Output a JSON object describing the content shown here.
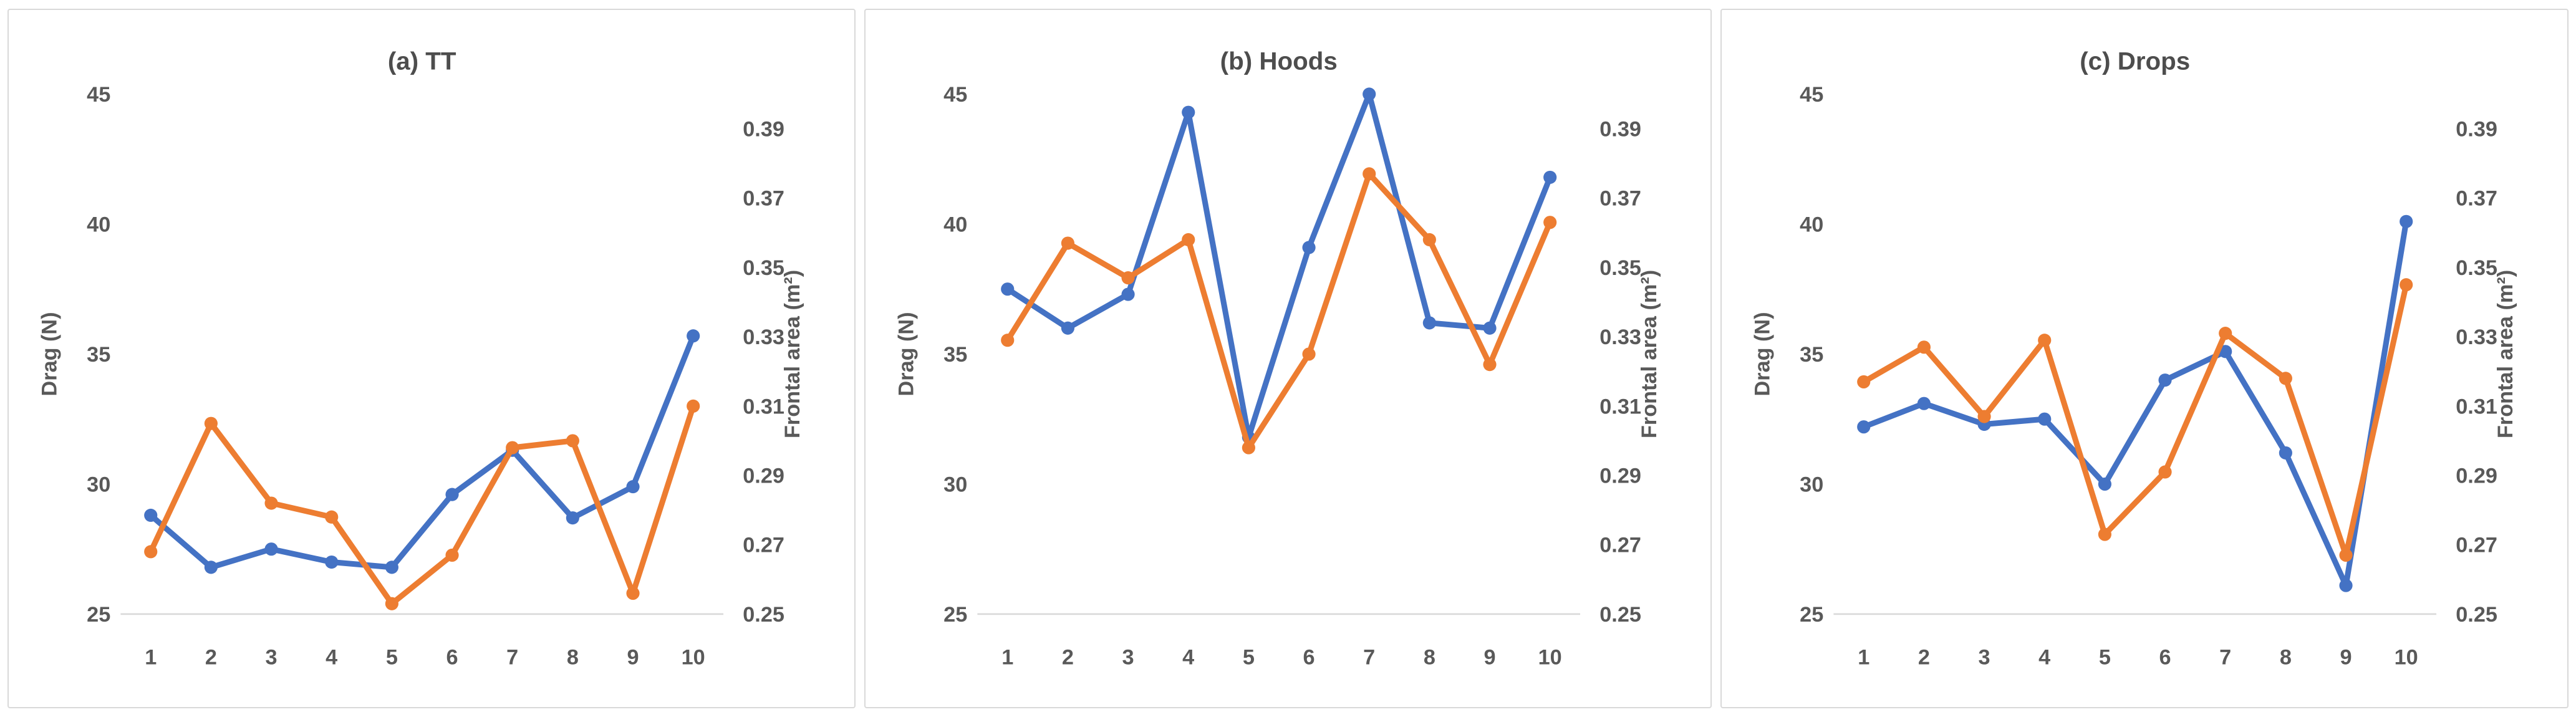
{
  "styles": {
    "text_color": "#595959",
    "title_color": "#4d4d4d",
    "axis_line_color": "#d9d9d9",
    "panel_border_color": "#d9d9d9",
    "drag_series_color": "#4472C4",
    "frontal_area_series_color": "#ED7D31"
  },
  "chart_data": [
    {
      "type": "line",
      "title": "(a) TT",
      "categories": [
        1,
        2,
        3,
        4,
        5,
        6,
        7,
        8,
        9,
        10
      ],
      "series": [
        {
          "name": "Drag",
          "axis": "left",
          "color": "#4472C4",
          "values": [
            28.8,
            26.8,
            27.5,
            27.0,
            26.8,
            29.6,
            31.3,
            28.7,
            29.9,
            35.7
          ]
        },
        {
          "name": "Frontal area",
          "axis": "right",
          "color": "#ED7D31",
          "values": [
            0.268,
            0.305,
            0.282,
            0.278,
            0.253,
            0.267,
            0.298,
            0.3,
            0.256,
            0.31
          ]
        }
      ],
      "axes": {
        "left": {
          "label": "Drag (N)",
          "min": 25,
          "max": 45,
          "ticks": [
            25,
            30,
            35,
            40,
            45
          ]
        },
        "right": {
          "label": "Frontal area (m²)",
          "min": 0.25,
          "max": 0.4,
          "ticks": [
            0.25,
            0.27,
            0.29,
            0.31,
            0.33,
            0.35,
            0.37,
            0.39
          ]
        }
      },
      "legend": "none",
      "grid": "off"
    },
    {
      "type": "line",
      "title": "(b) Hoods",
      "categories": [
        1,
        2,
        3,
        4,
        5,
        6,
        7,
        8,
        9,
        10
      ],
      "series": [
        {
          "name": "Drag",
          "axis": "left",
          "color": "#4472C4",
          "values": [
            37.5,
            36.0,
            37.3,
            44.3,
            31.8,
            39.1,
            45.0,
            36.2,
            36.0,
            41.8
          ]
        },
        {
          "name": "Frontal area",
          "axis": "right",
          "color": "#ED7D31",
          "values": [
            0.329,
            0.357,
            0.347,
            0.358,
            0.298,
            0.325,
            0.377,
            0.358,
            0.322,
            0.363
          ]
        }
      ],
      "axes": {
        "left": {
          "label": "Drag (N)",
          "min": 25,
          "max": 45,
          "ticks": [
            25,
            30,
            35,
            40,
            45
          ]
        },
        "right": {
          "label": "Frontal area (m²)",
          "min": 0.25,
          "max": 0.4,
          "ticks": [
            0.25,
            0.27,
            0.29,
            0.31,
            0.33,
            0.35,
            0.37,
            0.39
          ]
        }
      },
      "legend": "none",
      "grid": "off"
    },
    {
      "type": "line",
      "title": "(c) Drops",
      "categories": [
        1,
        2,
        3,
        4,
        5,
        6,
        7,
        8,
        9,
        10
      ],
      "series": [
        {
          "name": "Drag",
          "axis": "left",
          "color": "#4472C4",
          "values": [
            32.2,
            33.1,
            32.3,
            32.5,
            30.0,
            34.0,
            35.1,
            31.2,
            26.1,
            40.1
          ]
        },
        {
          "name": "Frontal area",
          "axis": "right",
          "color": "#ED7D31",
          "values": [
            0.317,
            0.327,
            0.307,
            0.329,
            0.273,
            0.291,
            0.331,
            0.318,
            0.267,
            0.345
          ]
        }
      ],
      "axes": {
        "left": {
          "label": "Drag (N)",
          "min": 25,
          "max": 45,
          "ticks": [
            25,
            30,
            35,
            40,
            45
          ]
        },
        "right": {
          "label": "Frontal area (m²)",
          "min": 0.25,
          "max": 0.4,
          "ticks": [
            0.25,
            0.27,
            0.29,
            0.31,
            0.33,
            0.35,
            0.37,
            0.39
          ]
        }
      },
      "legend": "none",
      "grid": "off"
    }
  ]
}
